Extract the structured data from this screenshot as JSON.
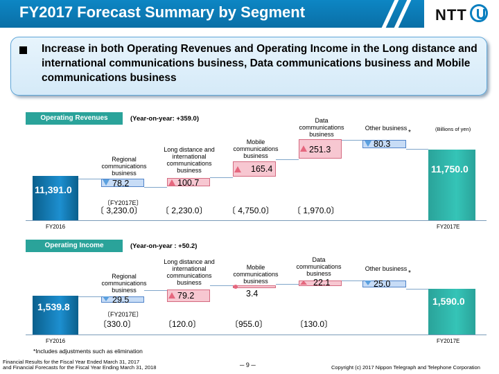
{
  "header": {
    "title": "FY2017 Forecast Summary by Segment",
    "logo": "NTT"
  },
  "message": "Increase in both Operating Revenues and Operating Income in the Long distance and international communications business, Data communications business and Mobile communications business",
  "unit_note": "(Billions of yen)",
  "footnote": "*Includes adjustments such as elimination",
  "fy2017e_tag": "〔FY2017E〕",
  "revenues": {
    "label": "Operating Revenues",
    "yoy": "(Year-on-year: +359.0)",
    "start": {
      "label": "FY2016",
      "value": "11,391.0"
    },
    "end": {
      "label": "FY2017E",
      "value": "11,750.0"
    },
    "segments": [
      {
        "name": "Regional communications business",
        "change": "78.2",
        "dir": "down",
        "forecast": "〔 3,230.0〕"
      },
      {
        "name": "Long distance and international communications business",
        "change": "100.7",
        "dir": "up",
        "forecast": "〔 2,230.0〕"
      },
      {
        "name": "Mobile communications business",
        "change": "165.4",
        "dir": "up",
        "forecast": "〔 4,750.0〕"
      },
      {
        "name": "Data communications business",
        "change": "251.3",
        "dir": "up",
        "forecast": "〔 1,970.0〕"
      },
      {
        "name": "Other business",
        "change": "80.3",
        "dir": "down",
        "forecast": ""
      }
    ]
  },
  "income": {
    "label": "Operating Income",
    "yoy": "(Year-on-year : +50.2)",
    "start": {
      "label": "FY2016",
      "value": "1,539.8"
    },
    "end": {
      "label": "FY2017E",
      "value": "1,590.0"
    },
    "segments": [
      {
        "name": "Regional communications business",
        "change": "29.5",
        "dir": "down",
        "forecast": "〔330.0〕"
      },
      {
        "name": "Long distance and international communications business",
        "change": "79.2",
        "dir": "up",
        "forecast": "〔120.0〕"
      },
      {
        "name": "Mobile communications business",
        "change": "3.4",
        "dir": "up",
        "forecast": "〔955.0〕"
      },
      {
        "name": "Data communications business",
        "change": "22.1",
        "dir": "up",
        "forecast": "〔130.0〕"
      },
      {
        "name": "Other business",
        "change": "25.0",
        "dir": "down",
        "forecast": ""
      }
    ]
  },
  "footer": {
    "left_line1": "Financial Results for the Fiscal Year Ended March 31, 2017",
    "left_line2": "and Financial Forecasts for the Fiscal Year Ending March 31, 2018",
    "page": "─ 9 ─",
    "copyright": "Copyright (c) 2017 Nippon Telegraph and Telephone Corporation"
  },
  "colors": {
    "header": "#0a7fbf",
    "pill": "#2aa39a",
    "decrease": "#c7dcf6",
    "increase": "#f7c7d1"
  }
}
